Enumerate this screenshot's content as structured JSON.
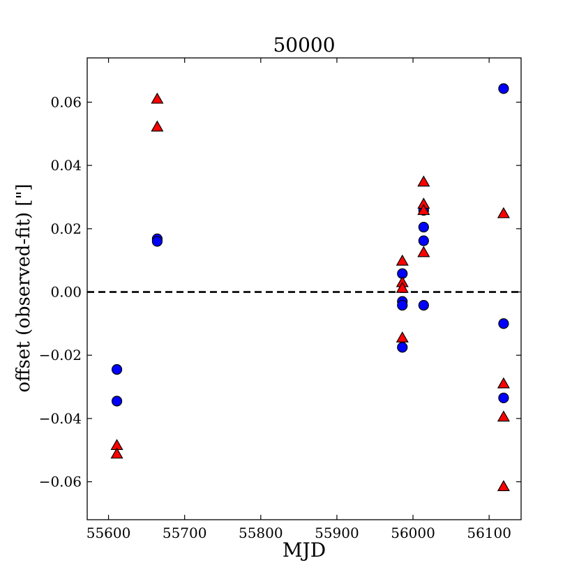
{
  "chart_data": {
    "type": "scatter",
    "title": "50000",
    "xlabel": "MJD",
    "ylabel": "offset (observed-fit) [\"]",
    "xlim": [
      55572,
      56142
    ],
    "ylim": [
      -0.072,
      0.074
    ],
    "xticks": [
      55600,
      55700,
      55800,
      55900,
      56000,
      56100
    ],
    "yticks": [
      -0.06,
      -0.04,
      -0.02,
      0.0,
      0.02,
      0.04,
      0.06
    ],
    "xtick_labels": [
      "55600",
      "55700",
      "55800",
      "55900",
      "56000",
      "56100"
    ],
    "ytick_labels": [
      "−0.06",
      "−0.04",
      "−0.02",
      "0.00",
      "0.02",
      "0.04",
      "0.06"
    ],
    "reference_line": {
      "y": 0.0,
      "style": "dashed",
      "color": "#000000"
    },
    "series": [
      {
        "marker": "circle",
        "color": "#0000ff",
        "points": [
          [
            55611,
            -0.0245
          ],
          [
            55611,
            -0.0345
          ],
          [
            55664,
            0.0168
          ],
          [
            55664,
            0.016
          ],
          [
            55986,
            0.0058
          ],
          [
            55986,
            -0.003
          ],
          [
            55986,
            -0.0042
          ],
          [
            55986,
            -0.0175
          ],
          [
            56014,
            0.0258
          ],
          [
            56014,
            0.0205
          ],
          [
            56014,
            0.0162
          ],
          [
            56014,
            -0.0042
          ],
          [
            56119,
            0.0643
          ],
          [
            56119,
            -0.01
          ],
          [
            56119,
            -0.0335
          ]
        ]
      },
      {
        "marker": "triangle",
        "color": "#ff0000",
        "points": [
          [
            55611,
            -0.0485
          ],
          [
            55611,
            -0.0512
          ],
          [
            55664,
            0.061
          ],
          [
            55664,
            0.0522
          ],
          [
            55986,
            0.0098
          ],
          [
            55986,
            0.003
          ],
          [
            55986,
            0.0012
          ],
          [
            55986,
            -0.0145
          ],
          [
            56014,
            0.0348
          ],
          [
            56014,
            0.0278
          ],
          [
            56014,
            0.0258
          ],
          [
            56014,
            0.0125
          ],
          [
            56119,
            0.0248
          ],
          [
            56119,
            -0.029
          ],
          [
            56119,
            -0.0395
          ],
          [
            56119,
            -0.0615
          ]
        ]
      }
    ]
  }
}
